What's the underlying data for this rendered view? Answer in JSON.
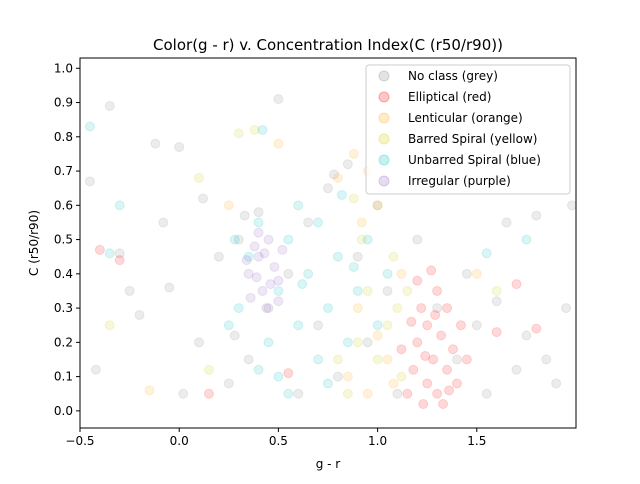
{
  "chart_data": {
    "type": "scatter",
    "title": "Color(g - r) v. Concentration Index(C (r50/r90))",
    "xlabel": "g - r",
    "ylabel": "C (r50/r90)",
    "xlim": [
      -0.5,
      2.0
    ],
    "ylim": [
      -0.05,
      1.03
    ],
    "xticks": [
      -0.5,
      0.0,
      0.5,
      1.0,
      1.5
    ],
    "xtick_labels": [
      "−0.5",
      "0.0",
      "0.5",
      "1.0",
      "1.5"
    ],
    "yticks": [
      0.0,
      0.1,
      0.2,
      0.3,
      0.4,
      0.5,
      0.6,
      0.7,
      0.8,
      0.9,
      1.0
    ],
    "ytick_labels": [
      "0.0",
      "0.1",
      "0.2",
      "0.3",
      "0.4",
      "0.5",
      "0.6",
      "0.7",
      "0.8",
      "0.9",
      "1.0"
    ],
    "grid": false,
    "legend_position": "top-right",
    "marker_alpha": 0.15,
    "series": [
      {
        "name": "No class (grey)",
        "color": "#808080",
        "points": [
          [
            -0.45,
            0.67
          ],
          [
            -0.42,
            0.12
          ],
          [
            -0.35,
            0.89
          ],
          [
            -0.3,
            0.46
          ],
          [
            -0.25,
            0.35
          ],
          [
            -0.2,
            0.28
          ],
          [
            -0.12,
            0.78
          ],
          [
            -0.08,
            0.55
          ],
          [
            -0.05,
            0.36
          ],
          [
            0.0,
            0.77
          ],
          [
            0.02,
            0.05
          ],
          [
            0.1,
            0.2
          ],
          [
            0.12,
            0.62
          ],
          [
            0.2,
            0.45
          ],
          [
            0.25,
            0.08
          ],
          [
            0.3,
            0.5
          ],
          [
            0.35,
            0.15
          ],
          [
            0.4,
            0.58
          ],
          [
            0.45,
            0.3
          ],
          [
            0.5,
            0.91
          ],
          [
            0.55,
            0.4
          ],
          [
            0.6,
            0.05
          ],
          [
            0.65,
            0.55
          ],
          [
            0.7,
            0.25
          ],
          [
            0.75,
            0.65
          ],
          [
            0.8,
            0.1
          ],
          [
            0.9,
            0.45
          ],
          [
            0.95,
            0.2
          ],
          [
            1.0,
            0.6
          ],
          [
            1.05,
            0.35
          ],
          [
            1.1,
            0.05
          ],
          [
            1.2,
            0.5
          ],
          [
            1.3,
            0.3
          ],
          [
            1.4,
            0.15
          ],
          [
            1.45,
            0.4
          ],
          [
            1.5,
            0.25
          ],
          [
            1.55,
            0.05
          ],
          [
            1.6,
            0.32
          ],
          [
            1.65,
            0.55
          ],
          [
            1.7,
            0.12
          ],
          [
            1.75,
            0.22
          ],
          [
            1.8,
            0.57
          ],
          [
            1.85,
            0.15
          ],
          [
            1.9,
            0.08
          ],
          [
            1.98,
            0.6
          ],
          [
            1.95,
            0.3
          ],
          [
            0.85,
            0.72
          ],
          [
            0.78,
            0.69
          ],
          [
            0.33,
            0.57
          ],
          [
            0.28,
            0.22
          ]
        ]
      },
      {
        "name": "Elliptical (red)",
        "color": "#ff0000",
        "points": [
          [
            1.15,
            0.05
          ],
          [
            1.18,
            0.12
          ],
          [
            1.2,
            0.2
          ],
          [
            1.22,
            0.3
          ],
          [
            1.25,
            0.08
          ],
          [
            1.25,
            0.25
          ],
          [
            1.28,
            0.15
          ],
          [
            1.3,
            0.35
          ],
          [
            1.3,
            0.05
          ],
          [
            1.32,
            0.22
          ],
          [
            1.35,
            0.12
          ],
          [
            1.35,
            0.3
          ],
          [
            1.38,
            0.18
          ],
          [
            1.4,
            0.08
          ],
          [
            1.2,
            0.38
          ],
          [
            1.27,
            0.41
          ],
          [
            1.12,
            0.18
          ],
          [
            1.42,
            0.25
          ],
          [
            1.23,
            0.02
          ],
          [
            1.33,
            0.02
          ],
          [
            1.17,
            0.26
          ],
          [
            1.45,
            0.15
          ],
          [
            1.29,
            0.28
          ],
          [
            1.24,
            0.16
          ],
          [
            1.36,
            0.06
          ],
          [
            0.15,
            0.05
          ],
          [
            0.55,
            0.11
          ],
          [
            1.6,
            0.23
          ],
          [
            1.7,
            0.37
          ],
          [
            1.8,
            0.24
          ],
          [
            -0.4,
            0.47
          ],
          [
            -0.3,
            0.44
          ]
        ]
      },
      {
        "name": "Lenticular (orange)",
        "color": "#ffa500",
        "points": [
          [
            0.88,
            0.75
          ],
          [
            0.95,
            0.7
          ],
          [
            0.9,
            0.3
          ],
          [
            1.0,
            0.22
          ],
          [
            1.05,
            0.15
          ],
          [
            0.85,
            0.1
          ],
          [
            0.95,
            0.05
          ],
          [
            1.08,
            0.08
          ],
          [
            1.12,
            0.4
          ],
          [
            0.92,
            0.55
          ],
          [
            0.8,
            0.68
          ],
          [
            1.0,
            0.6
          ],
          [
            0.25,
            0.6
          ],
          [
            0.5,
            0.78
          ],
          [
            1.5,
            0.4
          ],
          [
            -0.15,
            0.06
          ]
        ]
      },
      {
        "name": "Barred Spiral (yellow)",
        "color": "#cccc00",
        "points": [
          [
            0.9,
            0.2
          ],
          [
            1.0,
            0.15
          ],
          [
            1.05,
            0.25
          ],
          [
            1.1,
            0.3
          ],
          [
            1.12,
            0.1
          ],
          [
            0.95,
            0.35
          ],
          [
            0.85,
            0.05
          ],
          [
            0.8,
            0.15
          ],
          [
            1.08,
            0.45
          ],
          [
            0.92,
            0.5
          ],
          [
            0.88,
            0.62
          ],
          [
            1.15,
            0.35
          ],
          [
            0.3,
            0.81
          ],
          [
            0.38,
            0.82
          ],
          [
            -0.35,
            0.25
          ],
          [
            1.6,
            0.35
          ],
          [
            0.1,
            0.68
          ],
          [
            0.15,
            0.12
          ]
        ]
      },
      {
        "name": "Unbarred Spiral (blue)",
        "color": "#00bfbf",
        "points": [
          [
            0.3,
            0.3
          ],
          [
            0.35,
            0.45
          ],
          [
            0.4,
            0.55
          ],
          [
            0.45,
            0.2
          ],
          [
            0.5,
            0.35
          ],
          [
            0.55,
            0.5
          ],
          [
            0.6,
            0.25
          ],
          [
            0.65,
            0.4
          ],
          [
            0.7,
            0.15
          ],
          [
            0.75,
            0.3
          ],
          [
            0.8,
            0.45
          ],
          [
            0.85,
            0.2
          ],
          [
            0.9,
            0.35
          ],
          [
            0.95,
            0.5
          ],
          [
            1.0,
            0.25
          ],
          [
            0.7,
            0.55
          ],
          [
            0.6,
            0.6
          ],
          [
            0.5,
            0.1
          ],
          [
            0.4,
            0.12
          ],
          [
            0.82,
            0.63
          ],
          [
            0.55,
            0.05
          ],
          [
            0.75,
            0.08
          ],
          [
            1.05,
            0.4
          ],
          [
            0.28,
            0.5
          ],
          [
            0.25,
            0.25
          ],
          [
            0.62,
            0.37
          ],
          [
            0.88,
            0.42
          ],
          [
            -0.45,
            0.83
          ],
          [
            -0.3,
            0.6
          ],
          [
            0.42,
            0.82
          ],
          [
            1.75,
            0.5
          ],
          [
            1.55,
            0.46
          ],
          [
            -0.35,
            0.46
          ]
        ]
      },
      {
        "name": "Irregular (purple)",
        "color": "#8f5fbf",
        "points": [
          [
            0.35,
            0.4
          ],
          [
            0.4,
            0.45
          ],
          [
            0.45,
            0.5
          ],
          [
            0.42,
            0.35
          ],
          [
            0.5,
            0.38
          ],
          [
            0.38,
            0.48
          ],
          [
            0.48,
            0.42
          ],
          [
            0.44,
            0.3
          ],
          [
            0.36,
            0.33
          ],
          [
            0.52,
            0.47
          ],
          [
            0.4,
            0.52
          ],
          [
            0.46,
            0.37
          ],
          [
            0.34,
            0.44
          ],
          [
            0.5,
            0.32
          ],
          [
            0.43,
            0.46
          ],
          [
            0.39,
            0.39
          ]
        ]
      }
    ]
  }
}
